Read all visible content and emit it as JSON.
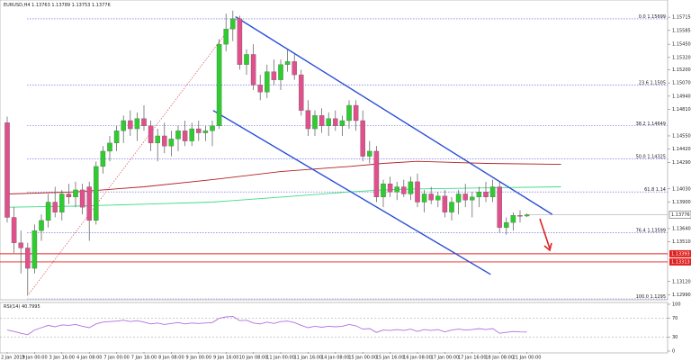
{
  "chart_data": {
    "type": "candlestick",
    "symbol": "EURUSD,H4",
    "categories": [
      "2 Jan 2019",
      null,
      null,
      null,
      "3 Jan 00:00",
      null,
      null,
      null,
      "3 Jan 16:00",
      null,
      null,
      null,
      "4 Jan 08:00",
      null,
      null,
      null,
      "7 Jan 00:00",
      null,
      null,
      null,
      "7 Jan 16:00",
      null,
      null,
      null,
      "8 Jan 08:00",
      null,
      null,
      null,
      "9 Jan 00:00",
      null,
      null,
      null,
      "9 Jan 16:00",
      null,
      null,
      null,
      "10 Jan 08:00",
      null,
      null,
      null,
      "11 Jan 00:00",
      null,
      null,
      null,
      "11 Jan 16:00",
      null,
      null,
      null,
      "14 Jan 08:00",
      null,
      null,
      null,
      "15 Jan 00:00",
      null,
      null,
      null,
      "15 Jan 16:00",
      null,
      null,
      null,
      "16 Jan 08:00",
      null,
      null,
      null,
      "17 Jan 00:00",
      null,
      null,
      null,
      "17 Jan 16:00",
      null,
      null,
      null,
      "18 Jan 08:00",
      null,
      null,
      null,
      "21 Jan 00:00"
    ],
    "open": [
      1.1468,
      1.1375,
      1.135,
      1.1345,
      1.1325,
      1.1362,
      1.1372,
      1.139,
      1.138,
      1.1398,
      1.1395,
      1.1402,
      1.1405,
      1.1372,
      1.1425,
      1.144,
      1.1448,
      1.146,
      1.147,
      1.1462,
      1.1472,
      1.1465,
      1.1448,
      1.1455,
      1.1445,
      1.1452,
      1.146,
      1.145,
      1.1462,
      1.1458,
      1.146,
      1.1465,
      1.1545,
      1.156,
      1.157,
      1.1525,
      1.1535,
      1.1505,
      1.1498,
      1.1518,
      1.151,
      1.1525,
      1.1528,
      1.1515,
      1.148,
      1.1462,
      1.1475,
      1.1465,
      1.1472,
      1.1465,
      1.147,
      1.1485,
      1.147,
      1.1435,
      1.144,
      1.1395,
      1.1408,
      1.14,
      1.1405,
      1.1398,
      1.141,
      1.139,
      1.1398,
      1.1392,
      1.1396,
      1.138,
      1.139,
      1.1398,
      1.1392,
      1.1395,
      1.14,
      1.1395,
      1.1405,
      1.1365,
      1.137,
      1.1377,
      1.13763
    ],
    "high": [
      1.1474,
      1.1385,
      1.1362,
      1.135,
      1.1368,
      1.1378,
      1.1398,
      1.1405,
      1.1402,
      1.1408,
      1.141,
      1.1408,
      1.141,
      1.143,
      1.1445,
      1.1455,
      1.1465,
      1.1475,
      1.148,
      1.1478,
      1.1485,
      1.147,
      1.1462,
      1.1468,
      1.146,
      1.1465,
      1.147,
      1.1468,
      1.147,
      1.1465,
      1.147,
      1.155,
      1.1575,
      1.1578,
      1.1573,
      1.154,
      1.1545,
      1.1515,
      1.1525,
      1.153,
      1.153,
      1.154,
      1.1535,
      1.152,
      1.149,
      1.148,
      1.1482,
      1.1478,
      1.148,
      1.1475,
      1.149,
      1.149,
      1.148,
      1.145,
      1.1445,
      1.1412,
      1.1415,
      1.141,
      1.1412,
      1.1415,
      1.1418,
      1.1402,
      1.1405,
      1.14,
      1.1402,
      1.1395,
      1.1402,
      1.1408,
      1.14,
      1.1405,
      1.141,
      1.1412,
      1.141,
      1.1375,
      1.138,
      1.1382,
      1.13789
    ],
    "low": [
      1.137,
      1.134,
      1.132,
      1.1298,
      1.132,
      1.1352,
      1.1365,
      1.1375,
      1.1372,
      1.1388,
      1.1385,
      1.1378,
      1.1352,
      1.1368,
      1.1418,
      1.143,
      1.144,
      1.1448,
      1.1455,
      1.145,
      1.146,
      1.144,
      1.143,
      1.1438,
      1.1435,
      1.144,
      1.1445,
      1.1445,
      1.145,
      1.145,
      1.1445,
      1.1462,
      1.1538,
      1.1548,
      1.152,
      1.1515,
      1.15,
      1.149,
      1.1492,
      1.1505,
      1.15,
      1.1518,
      1.151,
      1.1475,
      1.1455,
      1.1455,
      1.1458,
      1.1455,
      1.146,
      1.1455,
      1.1462,
      1.146,
      1.143,
      1.1428,
      1.139,
      1.1385,
      1.1395,
      1.1392,
      1.1395,
      1.1392,
      1.1385,
      1.138,
      1.1388,
      1.1385,
      1.1375,
      1.1372,
      1.1378,
      1.1385,
      1.1375,
      1.1385,
      1.139,
      1.139,
      1.136,
      1.1358,
      1.1362,
      1.137,
      1.13753
    ],
    "close": [
      1.1375,
      1.135,
      1.1345,
      1.1325,
      1.1362,
      1.1372,
      1.139,
      1.138,
      1.1398,
      1.1395,
      1.1402,
      1.1385,
      1.1372,
      1.1425,
      1.144,
      1.1448,
      1.146,
      1.147,
      1.1462,
      1.1472,
      1.1465,
      1.1448,
      1.1455,
      1.1445,
      1.1452,
      1.146,
      1.145,
      1.1462,
      1.1458,
      1.146,
      1.1465,
      1.1545,
      1.156,
      1.157,
      1.1525,
      1.1535,
      1.1505,
      1.1498,
      1.1518,
      1.151,
      1.1525,
      1.1528,
      1.1515,
      1.148,
      1.1462,
      1.1475,
      1.1465,
      1.1472,
      1.1465,
      1.147,
      1.1485,
      1.147,
      1.1435,
      1.144,
      1.1395,
      1.1408,
      1.14,
      1.1405,
      1.1398,
      1.141,
      1.139,
      1.1398,
      1.1392,
      1.1396,
      1.138,
      1.139,
      1.1398,
      1.1392,
      1.1395,
      1.14,
      1.1395,
      1.1405,
      1.1365,
      1.137,
      1.1377,
      1.1376,
      1.13776
    ],
    "up_color": "#2ecc2e",
    "down_color": "#e0508c",
    "ylim": [
      1.1295,
      1.1584
    ],
    "yticks": [
      1.15715,
      1.15585,
      {
        "value": 1.1545,
        "label": "1.15450"
      },
      {
        "value": 1.1532,
        "label": "1.15320"
      },
      {
        "value": 1.152,
        "label": "1.15200"
      },
      {
        "value": 1.1507,
        "label": "1.15070"
      },
      {
        "value": 1.1494,
        "label": "1.14940"
      },
      {
        "value": 1.1481,
        "label": "1.14810"
      },
      {
        "value": 1.1455,
        "label": "1.14550"
      },
      {
        "value": 1.1442,
        "label": "1.14420"
      },
      {
        "value": 1.1429,
        "label": "1.14290"
      },
      {
        "value": 1.1403,
        "label": "1.14030"
      },
      {
        "value": 1.139,
        "label": "1.13900"
      },
      {
        "value": 1.1364,
        "label": "1.13640"
      },
      {
        "value": 1.1351,
        "label": "1.13510"
      },
      {
        "value": 1.1312,
        "label": "1.13120"
      },
      {
        "value": 1.1299,
        "label": "1.12990"
      }
    ],
    "moving_averages": [
      {
        "color": "#b22222",
        "x": [
          0,
          10,
          20,
          30,
          40,
          50,
          55,
          60,
          70,
          81
        ],
        "values": [
          1.1398,
          1.14,
          1.1405,
          1.1412,
          1.142,
          1.1425,
          1.1428,
          1.143,
          1.1428,
          1.1427
        ]
      },
      {
        "color": "#3ddc84",
        "x": [
          0,
          10,
          20,
          30,
          40,
          50,
          55,
          60,
          70,
          81
        ],
        "values": [
          1.1385,
          1.1386,
          1.1388,
          1.139,
          1.1395,
          1.14,
          1.1402,
          1.1403,
          1.1404,
          1.1405
        ]
      }
    ],
    "trend_lines": [
      {
        "color": "#2a4fd6",
        "x": [
          33.4,
          79.7
        ],
        "values": [
          1.1572,
          1.1378
        ]
      },
      {
        "color": "#2a4fd6",
        "x": [
          30.1,
          70.7
        ],
        "values": [
          1.148,
          1.1319
        ]
      }
    ],
    "fib_anchor": {
      "color": "#e05050",
      "x": [
        3.2,
        33.8
      ],
      "values": [
        1.13,
        1.1572
      ]
    },
    "fib_levels": [
      {
        "label": "0.0",
        "value": 1.15699
      },
      {
        "label": "23.6",
        "value": 1.1505
      },
      {
        "label": "38.2",
        "value": 1.14649
      },
      {
        "label": "50.0",
        "value": 1.14325
      },
      {
        "label": "61.8",
        "value": 1.14
      },
      {
        "label": "76.4",
        "value": 1.13599
      },
      {
        "label": "100.0",
        "value": 1.1295
      }
    ],
    "support_levels": [
      1.13393,
      1.13313
    ],
    "rsi": {
      "label": "RSI(14)",
      "color": "#b070e0",
      "values": [
        45,
        42,
        38,
        35,
        45,
        50,
        55,
        52,
        56,
        55,
        57,
        53,
        50,
        58,
        62,
        63,
        64,
        66,
        63,
        65,
        62,
        58,
        60,
        57,
        59,
        61,
        58,
        60,
        59,
        60,
        61,
        70,
        73,
        74,
        65,
        66,
        60,
        58,
        62,
        59,
        63,
        64,
        61,
        55,
        50,
        53,
        51,
        53,
        52,
        53,
        57,
        54,
        47,
        48,
        40,
        45,
        44,
        46,
        44,
        47,
        42,
        46,
        44,
        46,
        41,
        45,
        47,
        45,
        46,
        48,
        46,
        48,
        38,
        40,
        42,
        41,
        40.7995
      ],
      "ylim": [
        0,
        100
      ],
      "yticks": [
        100,
        70,
        30,
        0
      ],
      "levels": [
        70,
        30
      ]
    }
  }
}
